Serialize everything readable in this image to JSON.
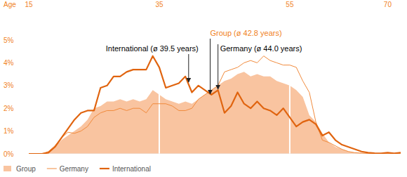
{
  "chart_data": {
    "type": "area",
    "x_label": "Age",
    "x": [
      15,
      16,
      17,
      18,
      19,
      20,
      21,
      22,
      23,
      24,
      25,
      26,
      27,
      28,
      29,
      30,
      31,
      32,
      33,
      34,
      35,
      36,
      37,
      38,
      39,
      40,
      41,
      42,
      43,
      44,
      45,
      46,
      47,
      48,
      49,
      50,
      51,
      52,
      53,
      54,
      55,
      56,
      57,
      58,
      59,
      60,
      61,
      62,
      63,
      64,
      65,
      66,
      67,
      68,
      69,
      70,
      71,
      72
    ],
    "xlim": [
      15,
      72
    ],
    "xticks": [
      15,
      35,
      55,
      70
    ],
    "ylim": [
      0,
      5.3
    ],
    "yticks": [
      {
        "value": 0,
        "label": "0%"
      },
      {
        "value": 1,
        "label": "1%"
      },
      {
        "value": 2,
        "label": "2%"
      },
      {
        "value": 3,
        "label": "3%"
      },
      {
        "value": 4,
        "label": "4%"
      },
      {
        "value": 5,
        "label": "5%"
      }
    ],
    "grid": true,
    "legend": "bottom",
    "series": [
      {
        "name": "Group",
        "type": "area",
        "color": "#f9c4a0",
        "values": [
          0,
          0,
          0,
          0.1,
          0.3,
          0.6,
          0.8,
          1.0,
          1.2,
          1.5,
          2.0,
          2.1,
          2.3,
          2.3,
          2.4,
          2.3,
          2.4,
          2.3,
          2.4,
          2.8,
          2.6,
          2.4,
          2.3,
          2.2,
          2.3,
          2.2,
          2.4,
          2.6,
          2.8,
          3.0,
          3.2,
          3.3,
          3.5,
          3.6,
          3.4,
          3.5,
          3.4,
          3.4,
          3.2,
          3.1,
          3.0,
          2.8,
          2.5,
          1.7,
          1.4,
          0.9,
          0.5,
          0.3,
          0.2,
          0.1,
          0.05,
          0.03,
          0.02,
          0.02,
          0.01,
          0.02,
          0.01,
          0.02
        ]
      },
      {
        "name": "Germany",
        "type": "line",
        "color": "#f08a3c",
        "values": [
          0,
          0,
          0,
          0.1,
          0.35,
          0.7,
          0.95,
          0.9,
          1.0,
          1.2,
          1.6,
          1.8,
          1.9,
          1.9,
          2.0,
          1.9,
          2.0,
          2.0,
          1.8,
          2.2,
          2.2,
          2.2,
          2.1,
          1.9,
          1.9,
          2.0,
          2.4,
          2.6,
          2.8,
          3.0,
          3.6,
          3.7,
          3.8,
          4.0,
          4.1,
          4.0,
          4.3,
          4.1,
          4.0,
          3.9,
          3.9,
          3.8,
          3.2,
          2.7,
          1.4,
          0.6,
          0.5,
          0.35,
          0.2,
          0.1,
          0.05,
          0.03,
          0.02,
          0.01,
          0.01,
          0.02,
          0.01,
          0.02
        ]
      },
      {
        "name": "International",
        "type": "line",
        "color": "#e0640f",
        "values": [
          0,
          0,
          0,
          0.05,
          0.3,
          0.7,
          1.1,
          1.5,
          1.8,
          1.9,
          1.9,
          2.9,
          3.0,
          3.4,
          3.4,
          3.6,
          3.7,
          3.7,
          3.7,
          4.3,
          3.8,
          2.9,
          3.0,
          3.1,
          3.4,
          2.7,
          3.0,
          2.8,
          2.6,
          2.8,
          1.8,
          2.1,
          2.7,
          2.2,
          2.0,
          2.3,
          2.0,
          1.9,
          1.7,
          2.0,
          1.6,
          1.2,
          1.4,
          1.5,
          1.3,
          0.8,
          0.95,
          0.6,
          0.4,
          0.3,
          0.2,
          0.1,
          0.05,
          0.03,
          0.02,
          0.05,
          0.02,
          0.05
        ]
      }
    ],
    "annotations": [
      {
        "text": "International (ø 39.5 years)",
        "x": 39.5,
        "color": "#000000"
      },
      {
        "text": "Group (ø 42.8 years)",
        "x": 42.8,
        "color": "#f07f1d"
      },
      {
        "text": "Germany (ø 44.0 years)",
        "x": 44.0,
        "color": "#000000"
      }
    ]
  }
}
